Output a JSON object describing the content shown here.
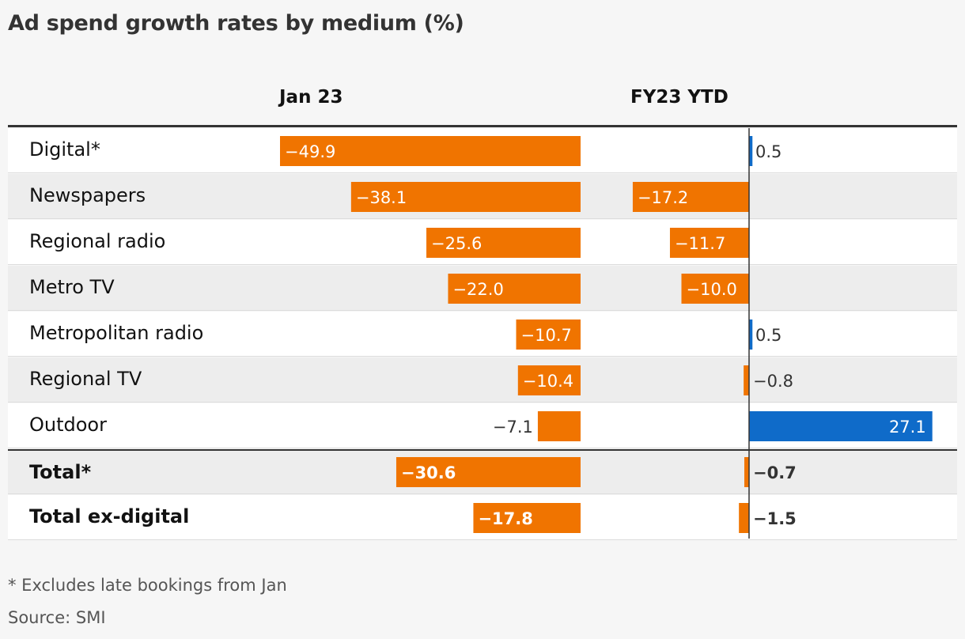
{
  "chart_data": {
    "type": "bar",
    "title": "Ad spend growth rates by medium (%)",
    "columns": [
      "Jan 23",
      "FY23 YTD"
    ],
    "categories": [
      "Digital*",
      "Newspapers",
      "Regional radio",
      "Metro TV",
      "Metropolitan radio",
      "Regional TV",
      "Outdoor",
      "Total*",
      "Total ex-digital"
    ],
    "series": [
      {
        "name": "Jan 23",
        "values": [
          -49.9,
          -38.1,
          -25.6,
          -22.0,
          -10.7,
          -10.4,
          -7.1,
          -30.6,
          -17.8
        ]
      },
      {
        "name": "FY23 YTD",
        "values": [
          0.5,
          -17.2,
          -11.7,
          -10.0,
          0.5,
          -0.8,
          27.1,
          -0.7,
          -1.5
        ]
      }
    ],
    "labels": [
      [
        "−49.9",
        "0.5"
      ],
      [
        "−38.1",
        "−17.2"
      ],
      [
        "−25.6",
        "−11.7"
      ],
      [
        "−22.0",
        "−10.0"
      ],
      [
        "−10.7",
        "0.5"
      ],
      [
        "−10.4",
        "−0.8"
      ],
      [
        "−7.1",
        "27.1"
      ],
      [
        "−30.6",
        "−0.7"
      ],
      [
        "−17.8",
        "−1.5"
      ]
    ],
    "bold_rows": [
      7,
      8
    ],
    "colors": {
      "negative": "#f07400",
      "positive": "#0f6bc9",
      "axis": "#333333"
    }
  },
  "footnotes": {
    "note": "* Excludes late bookings from Jan",
    "source": "Source: SMI"
  }
}
